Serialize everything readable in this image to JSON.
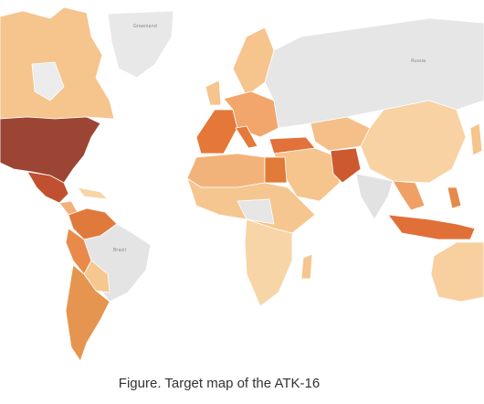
{
  "labels": {
    "greenland": "Greenland",
    "russia": "Russia",
    "brazil": "Brazil"
  },
  "caption": "Figure. Target map of the ATK-16"
}
